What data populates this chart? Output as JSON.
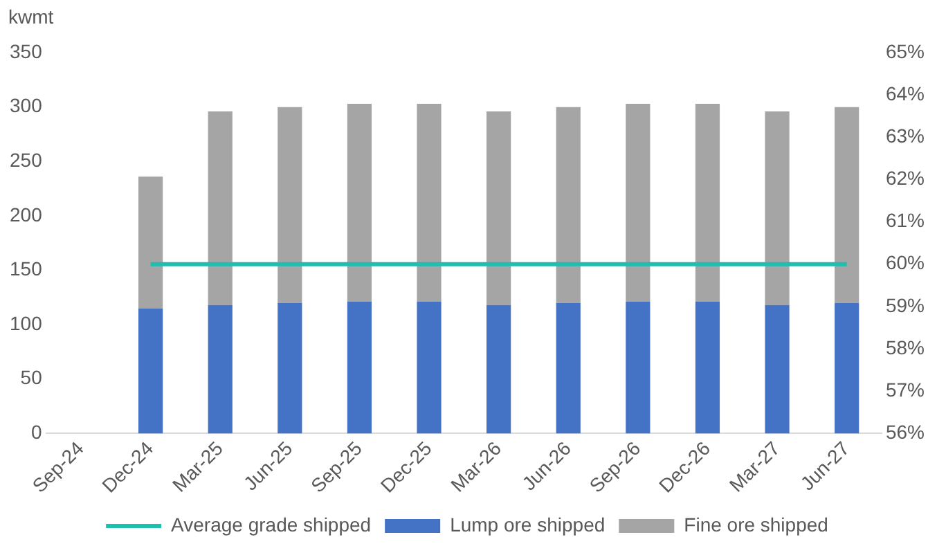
{
  "chart_data": {
    "type": "bar",
    "ylabel": "kwmt",
    "stacked": true,
    "grid": false,
    "legend": "bottom",
    "categories": [
      "Sep-24",
      "Dec-24",
      "Mar-25",
      "Jun-25",
      "Sep-25",
      "Dec-25",
      "Mar-26",
      "Jun-26",
      "Sep-26",
      "Dec-26",
      "Mar-27",
      "Jun-27"
    ],
    "series": [
      {
        "name": "Lump ore shipped",
        "color": "#4472c4",
        "values": [
          null,
          115,
          118,
          120,
          121,
          121,
          118,
          120,
          121,
          121,
          118,
          120
        ]
      },
      {
        "name": "Fine ore shipped",
        "color": "#a5a5a5",
        "values": [
          null,
          121,
          178,
          180,
          182,
          182,
          178,
          180,
          182,
          182,
          178,
          180
        ]
      },
      {
        "name": "Average grade shipped",
        "type": "line",
        "axis": "y2",
        "color": "#1fbfb0",
        "values": [
          null,
          60,
          60,
          60,
          60,
          60,
          60,
          60,
          60,
          60,
          60,
          60
        ]
      }
    ],
    "ylim": [
      0,
      350
    ],
    "yticks": [
      0,
      50,
      100,
      150,
      200,
      250,
      300,
      350
    ],
    "y2lim": [
      56,
      65
    ],
    "y2ticks": [
      {
        "value": 56,
        "label": "56%"
      },
      {
        "value": 57,
        "label": "57%"
      },
      {
        "value": 58,
        "label": "58%"
      },
      {
        "value": 59,
        "label": "59%"
      },
      {
        "value": 60,
        "label": "60%"
      },
      {
        "value": 61,
        "label": "61%"
      },
      {
        "value": 62,
        "label": "62%"
      },
      {
        "value": 63,
        "label": "63%"
      },
      {
        "value": 64,
        "label": "64%"
      },
      {
        "value": 65,
        "label": "65%"
      }
    ]
  }
}
